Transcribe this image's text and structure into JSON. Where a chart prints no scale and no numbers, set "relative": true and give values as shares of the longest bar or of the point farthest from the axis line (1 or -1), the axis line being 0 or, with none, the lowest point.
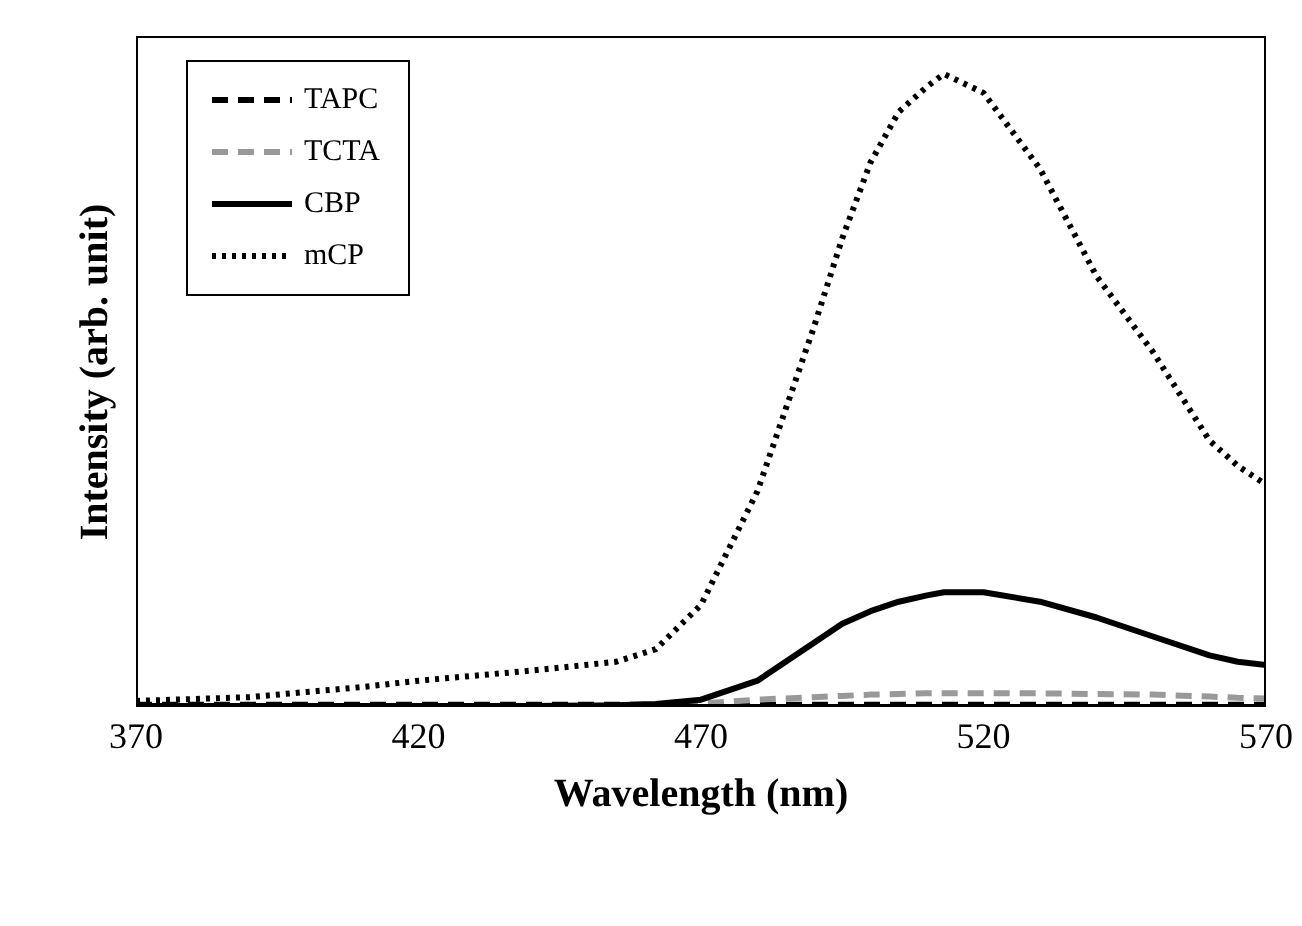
{
  "chart_data": {
    "type": "line",
    "xlabel": "Wavelength (nm)",
    "ylabel": "Intensity (arb. unit)",
    "relative": true,
    "xlim": [
      370,
      570
    ],
    "xticks": [
      370,
      420,
      470,
      520,
      570
    ],
    "tick_labels": "x",
    "legend": "top left",
    "marker": "none",
    "x": [
      370,
      390,
      410,
      420,
      440,
      455,
      462,
      470,
      480,
      490,
      495,
      500,
      505,
      510,
      513,
      520,
      530,
      540,
      550,
      560,
      565,
      570
    ],
    "series": [
      {
        "name": "TAPC",
        "color": "#000000",
        "line_style": "dashed",
        "values": [
          0.002,
          0.002,
          0.002,
          0.002,
          0.002,
          0.002,
          0.002,
          0.002,
          0.002,
          0.002,
          0.002,
          0.002,
          0.002,
          0.002,
          0.002,
          0.002,
          0.002,
          0.002,
          0.002,
          0.002,
          0.002,
          0.002
        ]
      },
      {
        "name": "TCTA",
        "color": "#999999",
        "line_style": "dashed",
        "values": [
          0,
          0,
          0,
          0,
          0,
          0,
          0,
          0.004,
          0.01,
          0.014,
          0.016,
          0.018,
          0.019,
          0.02,
          0.02,
          0.02,
          0.02,
          0.019,
          0.018,
          0.015,
          0.013,
          0.012
        ]
      },
      {
        "name": "CBP",
        "color": "#000000",
        "line_style": "solid",
        "values": [
          0,
          0,
          0,
          0,
          0,
          0.001,
          0.003,
          0.01,
          0.04,
          0.1,
          0.13,
          0.15,
          0.165,
          0.175,
          0.18,
          0.18,
          0.165,
          0.14,
          0.11,
          0.08,
          0.07,
          0.065
        ]
      },
      {
        "name": "mCP",
        "color": "#000000",
        "line_style": "dotted",
        "values": [
          0.008,
          0.014,
          0.03,
          0.04,
          0.056,
          0.07,
          0.09,
          0.16,
          0.34,
          0.6,
          0.74,
          0.86,
          0.94,
          0.98,
          1,
          0.97,
          0.85,
          0.68,
          0.56,
          0.42,
          0.38,
          0.35
        ]
      }
    ]
  }
}
